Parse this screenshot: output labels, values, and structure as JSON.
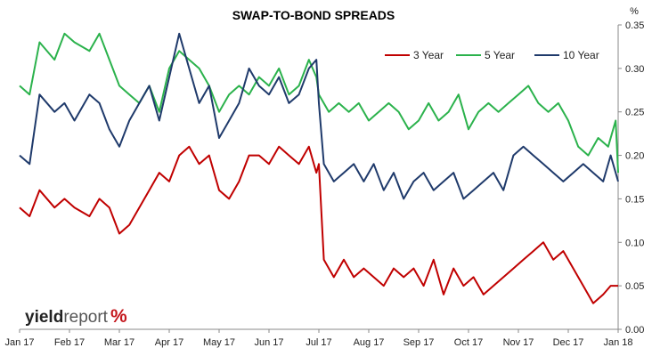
{
  "chart_data": {
    "type": "line",
    "title": "SWAP-TO-BOND SPREADS",
    "unit_label": "%",
    "ylim": [
      0,
      0.35
    ],
    "y_ticks": [
      "0.00",
      "0.05",
      "0.10",
      "0.15",
      "0.20",
      "0.25",
      "0.30",
      "0.35"
    ],
    "x_tick_labels": [
      "Jan 17",
      "Feb 17",
      "Mar 17",
      "Apr 17",
      "May 17",
      "Jun 17",
      "Jul 17",
      "Aug 17",
      "Sep 17",
      "Oct 17",
      "Nov 17",
      "Dec 17",
      "Jan 18"
    ],
    "x_range_months": [
      0,
      12
    ],
    "grid": false,
    "legend_position": "top-right",
    "series": [
      {
        "name": "3 Year",
        "color": "#c00000",
        "x": [
          0,
          0.2,
          0.4,
          0.7,
          0.9,
          1.1,
          1.4,
          1.6,
          1.8,
          2.0,
          2.2,
          2.4,
          2.6,
          2.8,
          3.0,
          3.2,
          3.4,
          3.6,
          3.8,
          4.0,
          4.2,
          4.4,
          4.6,
          4.8,
          5.0,
          5.2,
          5.4,
          5.6,
          5.8,
          5.95,
          6.0,
          6.1,
          6.3,
          6.5,
          6.7,
          6.9,
          7.1,
          7.3,
          7.5,
          7.7,
          7.9,
          8.1,
          8.3,
          8.5,
          8.7,
          8.9,
          9.1,
          9.3,
          9.5,
          9.7,
          9.9,
          10.1,
          10.3,
          10.5,
          10.7,
          10.9,
          11.1,
          11.3,
          11.5,
          11.7,
          11.85,
          12.0
        ],
        "values": [
          0.14,
          0.13,
          0.16,
          0.14,
          0.15,
          0.14,
          0.13,
          0.15,
          0.14,
          0.11,
          0.12,
          0.14,
          0.16,
          0.18,
          0.17,
          0.2,
          0.21,
          0.19,
          0.2,
          0.16,
          0.15,
          0.17,
          0.2,
          0.2,
          0.19,
          0.21,
          0.2,
          0.19,
          0.21,
          0.18,
          0.19,
          0.08,
          0.06,
          0.08,
          0.06,
          0.07,
          0.06,
          0.05,
          0.07,
          0.06,
          0.07,
          0.05,
          0.08,
          0.04,
          0.07,
          0.05,
          0.06,
          0.04,
          0.05,
          0.06,
          0.07,
          0.08,
          0.09,
          0.1,
          0.08,
          0.09,
          0.07,
          0.05,
          0.03,
          0.04,
          0.05,
          0.05
        ]
      },
      {
        "name": "5 Year",
        "color": "#2bb24c",
        "x": [
          0,
          0.2,
          0.4,
          0.7,
          0.9,
          1.1,
          1.4,
          1.6,
          1.8,
          2.0,
          2.2,
          2.4,
          2.6,
          2.8,
          3.0,
          3.2,
          3.4,
          3.6,
          3.8,
          4.0,
          4.2,
          4.4,
          4.6,
          4.8,
          5.0,
          5.2,
          5.4,
          5.6,
          5.8,
          5.95,
          6.0,
          6.2,
          6.4,
          6.6,
          6.8,
          7.0,
          7.2,
          7.4,
          7.6,
          7.8,
          8.0,
          8.2,
          8.4,
          8.6,
          8.8,
          9.0,
          9.2,
          9.4,
          9.6,
          9.8,
          10.0,
          10.2,
          10.4,
          10.6,
          10.8,
          11.0,
          11.2,
          11.4,
          11.6,
          11.8,
          11.95,
          12.0
        ],
        "values": [
          0.28,
          0.27,
          0.33,
          0.31,
          0.34,
          0.33,
          0.32,
          0.34,
          0.31,
          0.28,
          0.27,
          0.26,
          0.28,
          0.25,
          0.3,
          0.32,
          0.31,
          0.3,
          0.28,
          0.25,
          0.27,
          0.28,
          0.27,
          0.29,
          0.28,
          0.3,
          0.27,
          0.28,
          0.31,
          0.29,
          0.27,
          0.25,
          0.26,
          0.25,
          0.26,
          0.24,
          0.25,
          0.26,
          0.25,
          0.23,
          0.24,
          0.26,
          0.24,
          0.25,
          0.27,
          0.23,
          0.25,
          0.26,
          0.25,
          0.26,
          0.27,
          0.28,
          0.26,
          0.25,
          0.26,
          0.24,
          0.21,
          0.2,
          0.22,
          0.21,
          0.24,
          0.18
        ]
      },
      {
        "name": "10 Year",
        "color": "#1f3a6b",
        "x": [
          0,
          0.2,
          0.4,
          0.7,
          0.9,
          1.1,
          1.4,
          1.6,
          1.8,
          2.0,
          2.2,
          2.4,
          2.6,
          2.8,
          3.0,
          3.2,
          3.4,
          3.6,
          3.8,
          4.0,
          4.2,
          4.4,
          4.6,
          4.8,
          5.0,
          5.2,
          5.4,
          5.6,
          5.8,
          5.95,
          6.0,
          6.1,
          6.3,
          6.5,
          6.7,
          6.9,
          7.1,
          7.3,
          7.5,
          7.7,
          7.9,
          8.1,
          8.3,
          8.5,
          8.7,
          8.9,
          9.1,
          9.3,
          9.5,
          9.7,
          9.9,
          10.1,
          10.3,
          10.5,
          10.7,
          10.9,
          11.1,
          11.3,
          11.5,
          11.7,
          11.85,
          12.0
        ],
        "values": [
          0.2,
          0.19,
          0.27,
          0.25,
          0.26,
          0.24,
          0.27,
          0.26,
          0.23,
          0.21,
          0.24,
          0.26,
          0.28,
          0.24,
          0.29,
          0.34,
          0.3,
          0.26,
          0.28,
          0.22,
          0.24,
          0.26,
          0.3,
          0.28,
          0.27,
          0.29,
          0.26,
          0.27,
          0.3,
          0.31,
          0.26,
          0.19,
          0.17,
          0.18,
          0.19,
          0.17,
          0.19,
          0.16,
          0.18,
          0.15,
          0.17,
          0.18,
          0.16,
          0.17,
          0.18,
          0.15,
          0.16,
          0.17,
          0.18,
          0.16,
          0.2,
          0.21,
          0.2,
          0.19,
          0.18,
          0.17,
          0.18,
          0.19,
          0.18,
          0.17,
          0.2,
          0.17
        ]
      }
    ]
  },
  "branding": {
    "logo_bold": "yield",
    "logo_light": "report",
    "logo_pct": "%"
  }
}
